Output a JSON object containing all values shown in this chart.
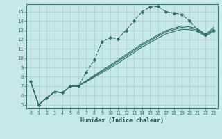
{
  "background_color": "#c8e8e8",
  "grid_color": "#a8cccc",
  "line_color": "#2a6e62",
  "xlabel": "Humidex (Indice chaleur)",
  "xlim_min": -0.5,
  "xlim_max": 23.5,
  "ylim_min": 4.6,
  "ylim_max": 15.8,
  "xticks": [
    0,
    1,
    2,
    3,
    4,
    5,
    6,
    7,
    8,
    9,
    10,
    11,
    12,
    13,
    14,
    15,
    16,
    17,
    18,
    19,
    20,
    21,
    22,
    23
  ],
  "yticks": [
    5,
    6,
    7,
    8,
    9,
    10,
    11,
    12,
    13,
    14,
    15
  ],
  "curve_main_x": [
    0,
    1,
    2,
    3,
    4,
    5,
    6,
    7,
    8,
    9,
    10,
    11,
    12,
    13,
    14,
    15,
    16,
    17,
    18,
    19,
    20,
    21,
    22,
    23
  ],
  "curve_main_y": [
    7.5,
    5.0,
    5.7,
    6.4,
    6.3,
    7.0,
    7.0,
    8.5,
    9.8,
    11.8,
    12.2,
    12.1,
    13.0,
    14.0,
    15.0,
    15.5,
    15.55,
    15.0,
    14.85,
    14.7,
    14.0,
    13.0,
    12.5,
    13.0
  ],
  "curve_top_x": [
    0,
    1,
    2,
    3,
    4,
    5,
    6,
    7,
    8,
    9,
    10,
    11,
    12,
    13,
    14,
    15,
    16,
    17,
    18,
    19,
    20,
    21,
    22,
    23
  ],
  "curve_top_y": [
    7.5,
    5.0,
    5.7,
    6.4,
    6.3,
    7.0,
    7.0,
    7.6,
    8.15,
    8.7,
    9.25,
    9.8,
    10.4,
    10.95,
    11.55,
    12.0,
    12.5,
    12.95,
    13.2,
    13.45,
    13.35,
    13.15,
    12.55,
    13.3
  ],
  "curve_mid_x": [
    0,
    1,
    2,
    3,
    4,
    5,
    6,
    7,
    8,
    9,
    10,
    11,
    12,
    13,
    14,
    15,
    16,
    17,
    18,
    19,
    20,
    21,
    22,
    23
  ],
  "curve_mid_y": [
    7.5,
    5.0,
    5.7,
    6.4,
    6.3,
    7.0,
    7.0,
    7.5,
    8.05,
    8.6,
    9.1,
    9.65,
    10.25,
    10.8,
    11.4,
    11.85,
    12.35,
    12.8,
    13.05,
    13.3,
    13.2,
    13.0,
    12.45,
    13.1
  ],
  "curve_bot_x": [
    0,
    1,
    2,
    3,
    4,
    5,
    6,
    7,
    8,
    9,
    10,
    11,
    12,
    13,
    14,
    15,
    16,
    17,
    18,
    19,
    20,
    21,
    22,
    23
  ],
  "curve_bot_y": [
    7.5,
    5.0,
    5.7,
    6.4,
    6.3,
    7.0,
    7.0,
    7.45,
    7.95,
    8.45,
    8.95,
    9.45,
    10.05,
    10.6,
    11.2,
    11.65,
    12.15,
    12.6,
    12.85,
    13.1,
    13.05,
    12.85,
    12.35,
    12.9
  ]
}
